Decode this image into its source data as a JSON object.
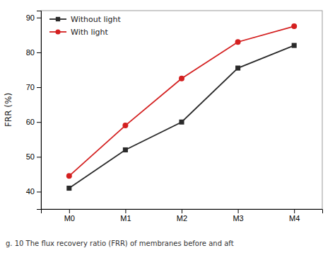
{
  "chart_data": {
    "type": "line",
    "categories": [
      "M0",
      "M1",
      "M2",
      "M3",
      "M4"
    ],
    "series": [
      {
        "name": "Without light",
        "color": "#2a2a2a",
        "marker": "square",
        "line_style": "solid",
        "values": [
          41,
          52,
          60,
          75.5,
          82
        ]
      },
      {
        "name": "With light",
        "color": "#d42020",
        "marker": "circle",
        "line_style": "solid",
        "values": [
          44.5,
          59,
          72.5,
          83,
          87.5
        ]
      }
    ],
    "y_label": "FRR (%)",
    "ylim": [
      35,
      92
    ],
    "yticks": [
      40,
      50,
      60,
      70,
      80,
      90
    ],
    "legend": "upper left",
    "grid": false,
    "annotation": "g. 10   The flux recovery ratio (FRR) of membranes before and aft"
  }
}
